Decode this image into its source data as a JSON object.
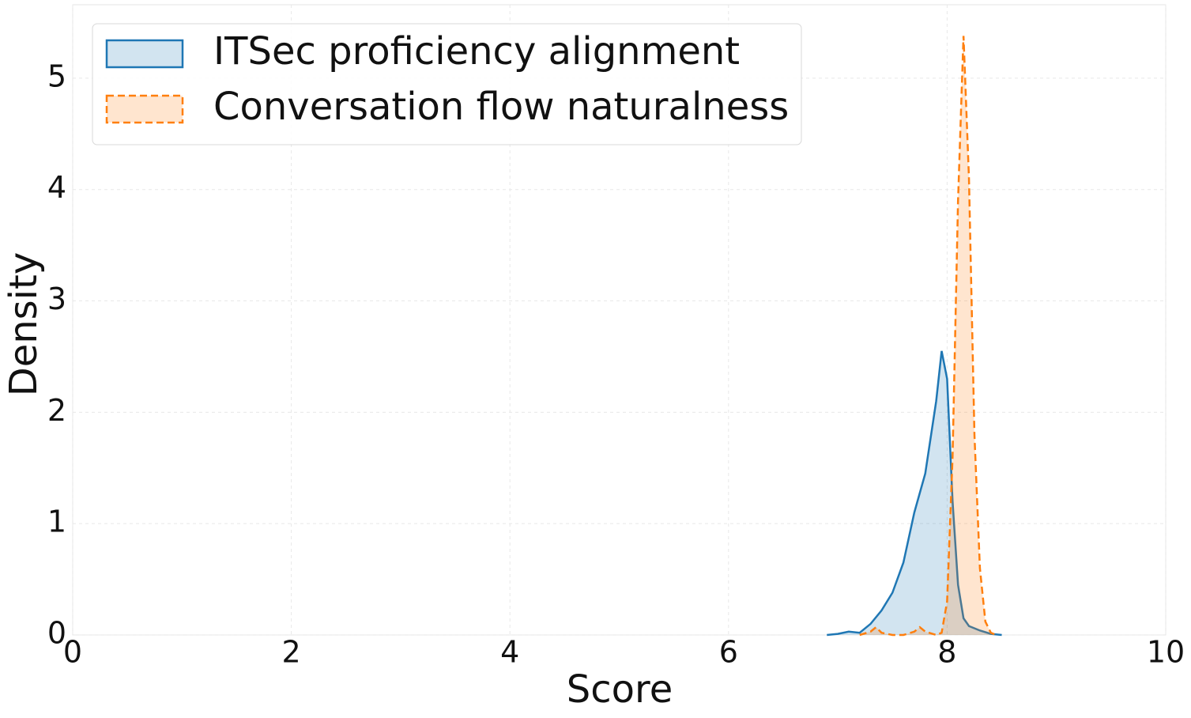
{
  "chart_data": {
    "type": "kde",
    "x_label": "Score",
    "y_label": "Density",
    "xlim": [
      0,
      10
    ],
    "ylim": [
      0,
      5.66
    ],
    "xticks": [
      0,
      2,
      4,
      6,
      8,
      10
    ],
    "yticks": [
      0,
      1,
      2,
      3,
      4,
      5
    ],
    "grid": true,
    "legend": "upper left",
    "series": [
      {
        "name": "ITSec proficiency alignment",
        "color": "#1f77b4",
        "linestyle": "solid",
        "x": [
          6.9,
          7.0,
          7.1,
          7.2,
          7.3,
          7.4,
          7.5,
          7.6,
          7.7,
          7.8,
          7.9,
          7.95,
          8.0,
          8.05,
          8.1,
          8.15,
          8.2,
          8.3,
          8.4,
          8.5
        ],
        "values": [
          0,
          0.01,
          0.03,
          0.02,
          0.1,
          0.22,
          0.38,
          0.65,
          1.1,
          1.45,
          2.1,
          2.55,
          2.3,
          1.2,
          0.45,
          0.15,
          0.08,
          0.04,
          0.01,
          0
        ]
      },
      {
        "name": "Conversation flow naturalness",
        "color": "#ff7f0e",
        "linestyle": "dashed",
        "x": [
          7.2,
          7.3,
          7.35,
          7.4,
          7.5,
          7.6,
          7.7,
          7.75,
          7.8,
          7.9,
          7.95,
          8.0,
          8.05,
          8.1,
          8.15,
          8.2,
          8.25,
          8.3,
          8.35,
          8.4,
          8.45
        ],
        "values": [
          0,
          0.03,
          0.07,
          0.02,
          0,
          0,
          0.03,
          0.07,
          0.03,
          0,
          0.02,
          0.3,
          1.6,
          3.9,
          5.38,
          4.1,
          1.8,
          0.6,
          0.12,
          0.02,
          0
        ]
      }
    ]
  }
}
